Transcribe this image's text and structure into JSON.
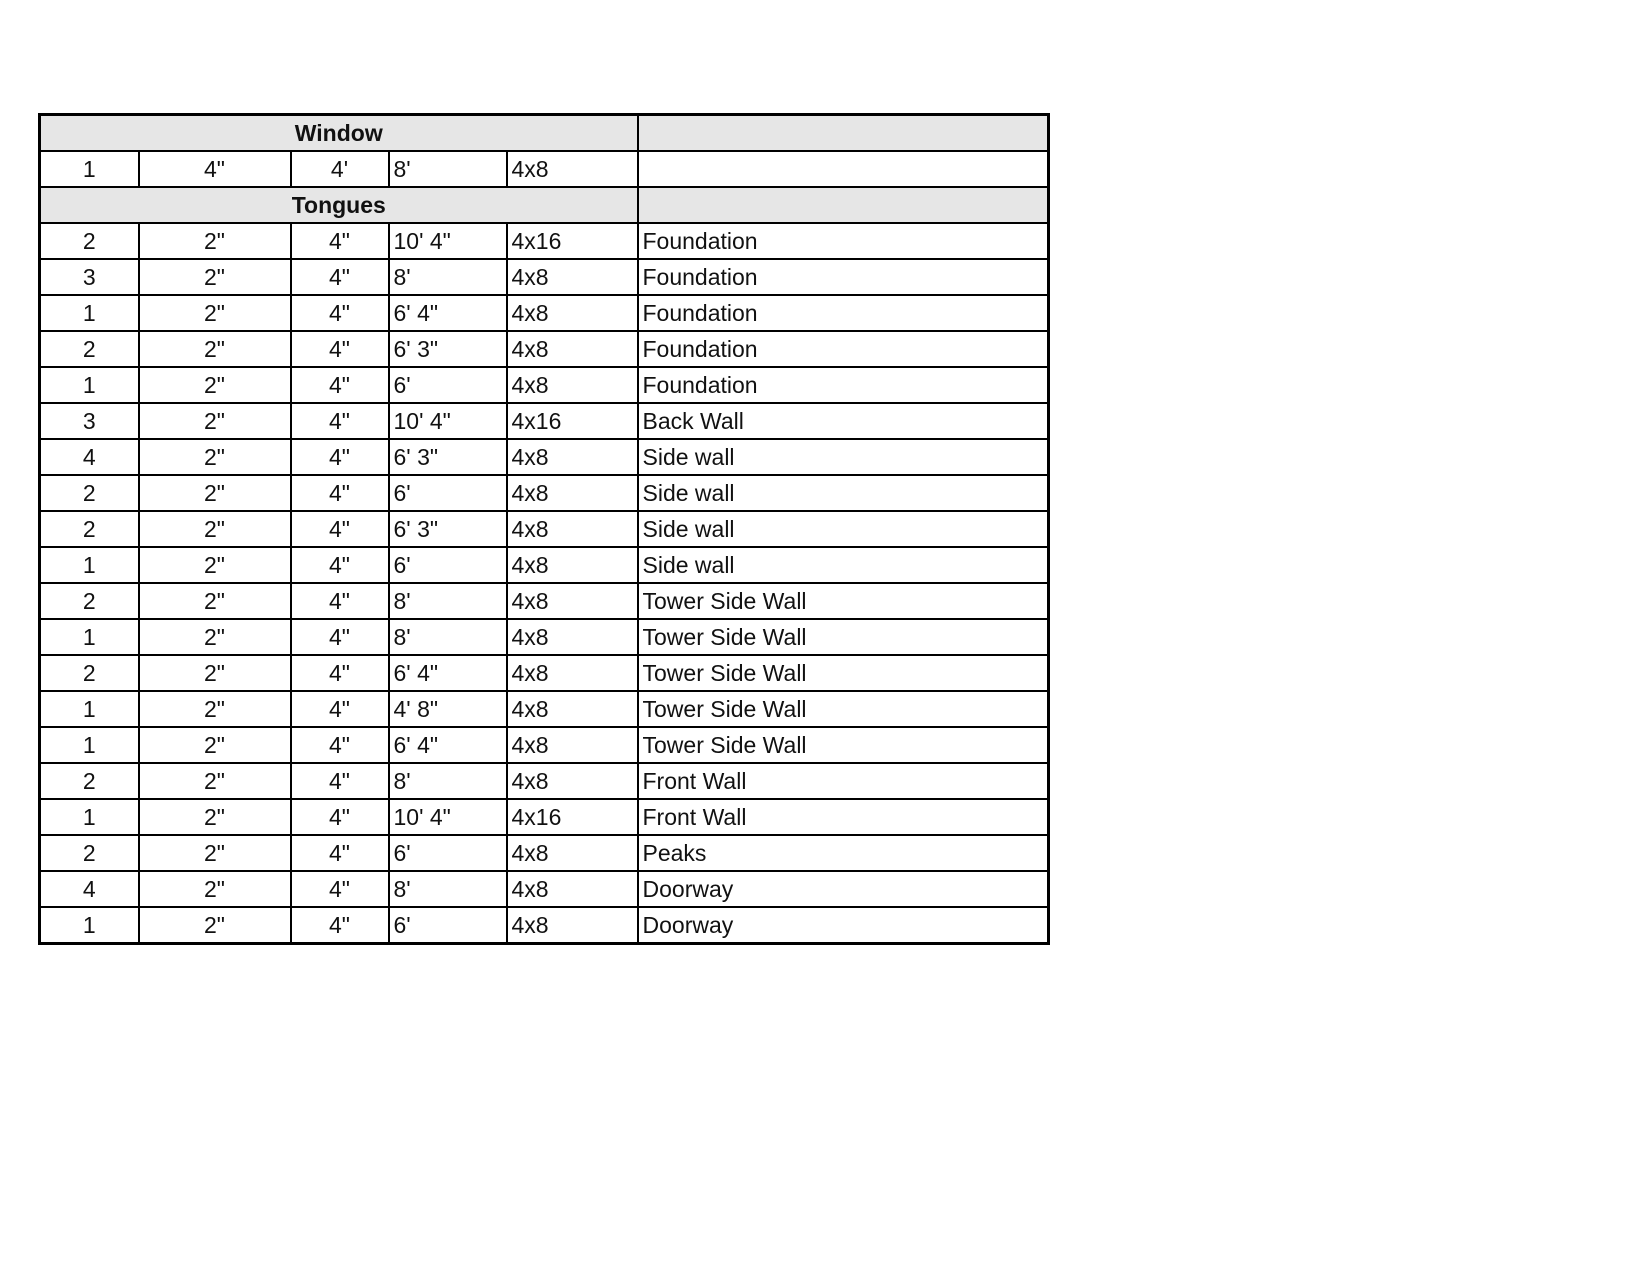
{
  "sections": [
    {
      "title": "Window",
      "rows": [
        [
          "1",
          "4\"",
          "4'",
          "8'",
          "4x8",
          ""
        ]
      ]
    },
    {
      "title": "Tongues",
      "rows": [
        [
          "2",
          "2\"",
          "4\"",
          "10' 4\"",
          "4x16",
          "Foundation"
        ],
        [
          "3",
          "2\"",
          "4\"",
          "8'",
          "4x8",
          "Foundation"
        ],
        [
          "1",
          "2\"",
          "4\"",
          "6' 4\"",
          "4x8",
          "Foundation"
        ],
        [
          "2",
          "2\"",
          "4\"",
          "6' 3\"",
          "4x8",
          "Foundation"
        ],
        [
          "1",
          "2\"",
          "4\"",
          "6'",
          "4x8",
          "Foundation"
        ],
        [
          "3",
          "2\"",
          "4\"",
          "10' 4\"",
          "4x16",
          "Back Wall"
        ],
        [
          "4",
          "2\"",
          "4\"",
          "6' 3\"",
          "4x8",
          "Side wall"
        ],
        [
          "2",
          "2\"",
          "4\"",
          "6'",
          "4x8",
          "Side wall"
        ],
        [
          "2",
          "2\"",
          "4\"",
          "6' 3\"",
          "4x8",
          "Side wall"
        ],
        [
          "1",
          "2\"",
          "4\"",
          "6'",
          "4x8",
          "Side wall"
        ],
        [
          "2",
          "2\"",
          "4\"",
          "8'",
          "4x8",
          "Tower Side Wall"
        ],
        [
          "1",
          "2\"",
          "4\"",
          "8'",
          "4x8",
          "Tower Side Wall"
        ],
        [
          "2",
          "2\"",
          "4\"",
          "6' 4\"",
          "4x8",
          "Tower Side Wall"
        ],
        [
          "1",
          "2\"",
          "4\"",
          "4' 8\"",
          "4x8",
          "Tower Side Wall"
        ],
        [
          "1",
          "2\"",
          "4\"",
          "6' 4\"",
          "4x8",
          "Tower Side Wall"
        ],
        [
          "2",
          "2\"",
          "4\"",
          "8'",
          "4x8",
          "Front Wall"
        ],
        [
          "1",
          "2\"",
          "4\"",
          "10' 4\"",
          "4x16",
          "Front Wall"
        ],
        [
          "2",
          "2\"",
          "4\"",
          "6'",
          "4x8",
          "Peaks"
        ],
        [
          "4",
          "2\"",
          "4\"",
          "8'",
          "4x8",
          "Doorway"
        ],
        [
          "1",
          "2\"",
          "4\"",
          "6'",
          "4x8",
          "Doorway"
        ]
      ]
    }
  ],
  "colors": {
    "section_header_bg": "#e6e6e6",
    "border": "#000000"
  }
}
